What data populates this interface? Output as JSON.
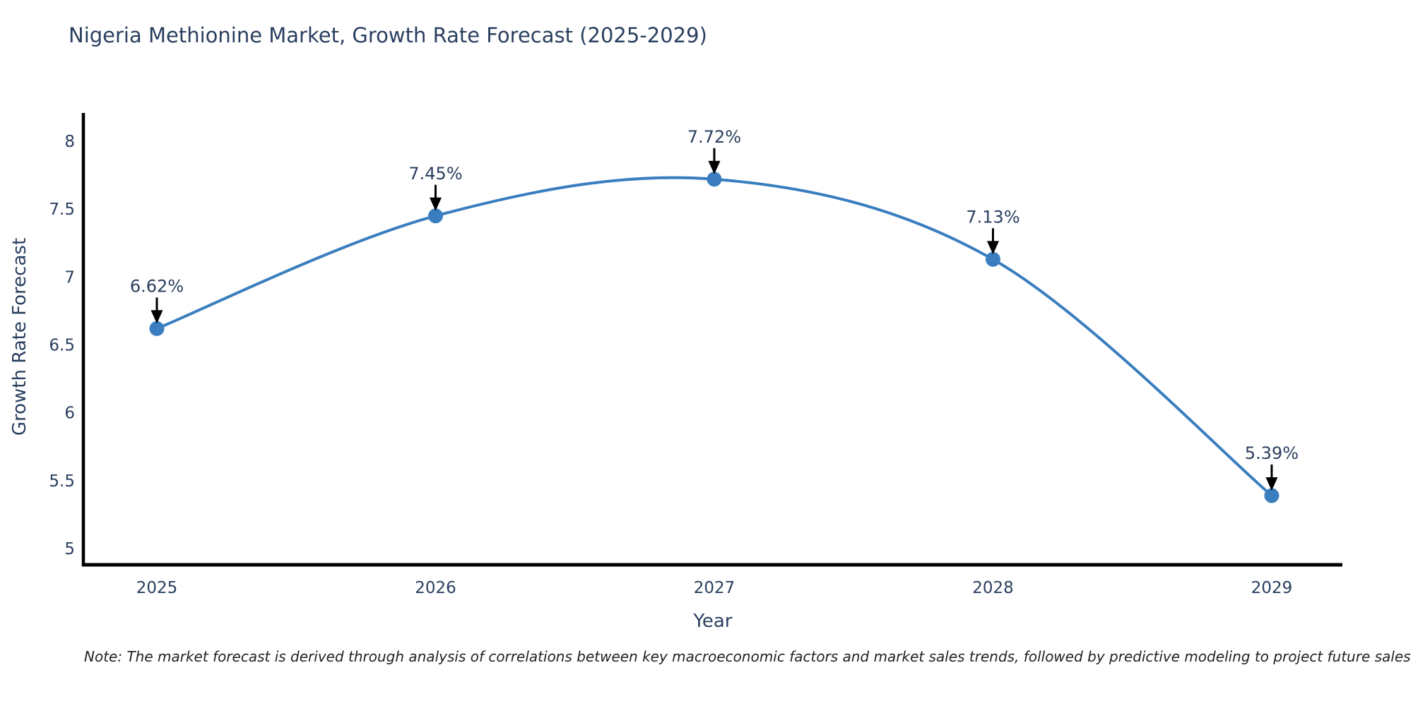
{
  "title": "Nigeria Methionine Market, Growth Rate Forecast (2025-2029)",
  "note": "Note: The market forecast is derived through analysis of correlations between key macroeconomic factors and market sales trends, followed by predictive modeling to project future sales",
  "chart_data": {
    "type": "line",
    "line_shape": "spline",
    "title": "Nigeria Methionine Market, Growth Rate Forecast (2025-2029)",
    "categories": [
      "2025",
      "2026",
      "2027",
      "2028",
      "2029"
    ],
    "series": [
      {
        "name": "Growth Rate Forecast",
        "values": [
          6.62,
          7.45,
          7.72,
          7.13,
          5.39
        ],
        "point_labels": [
          "6.62%",
          "7.45%",
          "7.72%",
          "7.13%",
          "5.39%"
        ]
      }
    ],
    "xlabel": "Year",
    "ylabel": "Growth Rate Forecast",
    "yticks": [
      5,
      5.5,
      6,
      6.5,
      7,
      7.5,
      8
    ],
    "ylim": [
      4.88,
      8.21
    ],
    "grid": false,
    "legend": "none",
    "annotations": "arrow-down-to-point",
    "colors": {
      "line": "#3a7ebf",
      "marker": "#3a7ebf",
      "axis": "#000000",
      "tick_text": "#2a3f5f",
      "annotation_text": "#2a3f5f",
      "annotation_arrow": "#000000",
      "background": "#ffffff"
    }
  }
}
